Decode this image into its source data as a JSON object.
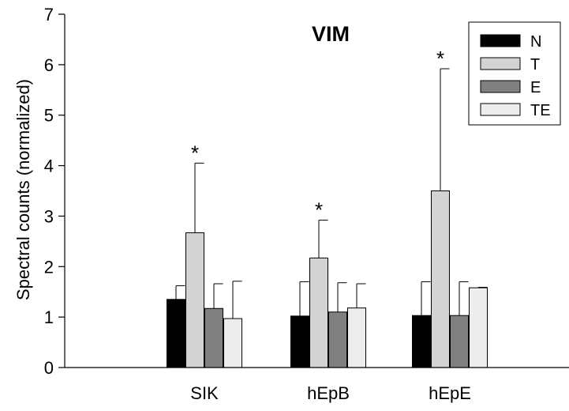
{
  "chart_data": {
    "type": "bar",
    "title": "VIM",
    "ylabel": "Spectral counts (normalized)",
    "xlabel": "",
    "ylim": [
      0,
      7
    ],
    "yticks": [
      0,
      1,
      2,
      3,
      4,
      5,
      6,
      7
    ],
    "categories": [
      "SIK",
      "hEpB",
      "hEpE"
    ],
    "series": [
      {
        "name": "N",
        "color": "#000000",
        "values": [
          1.35,
          1.02,
          1.03
        ],
        "error_upper": [
          1.62,
          1.7,
          1.7
        ]
      },
      {
        "name": "T",
        "color": "#d3d3d3",
        "values": [
          2.67,
          2.17,
          3.5
        ],
        "error_upper": [
          4.05,
          2.92,
          5.92
        ]
      },
      {
        "name": "E",
        "color": "#808080",
        "values": [
          1.17,
          1.1,
          1.03
        ],
        "error_upper": [
          1.66,
          1.68,
          1.7
        ]
      },
      {
        "name": "TE",
        "color": "#ededed",
        "values": [
          0.97,
          1.18,
          1.58
        ],
        "error_upper": [
          1.71,
          1.66,
          1.59
        ]
      }
    ],
    "annotations": [
      {
        "text": "*",
        "category": "SIK",
        "series": "T"
      },
      {
        "text": "*",
        "category": "hEpB",
        "series": "T"
      },
      {
        "text": "*",
        "category": "hEpE",
        "series": "T"
      }
    ],
    "legend_position": "top-right",
    "grid": false
  }
}
